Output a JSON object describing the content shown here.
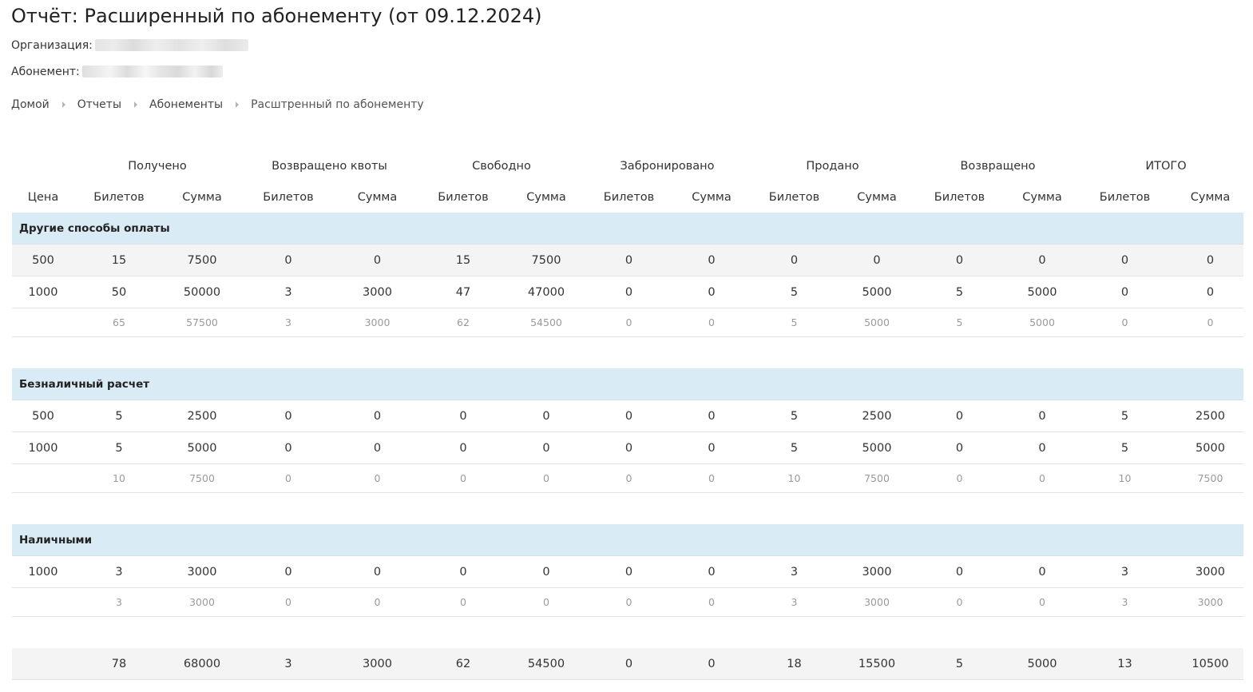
{
  "page": {
    "title": "Отчёт: Расширенный по абонементу (от 09.12.2024)",
    "organization_label": "Организация:",
    "subscription_label": "Абонемент:"
  },
  "breadcrumb": [
    "Домой",
    "Отчеты",
    "Абонементы",
    "Расштренный по абонементу"
  ],
  "table": {
    "group_headers": [
      "Получено",
      "Возвращено квоты",
      "Свободно",
      "Забронировано",
      "Продано",
      "Возвращено",
      "ИТОГО"
    ],
    "column_headers": [
      "Цена",
      "Билетов",
      "Сумма",
      "Билетов",
      "Сумма",
      "Билетов",
      "Сумма",
      "Билетов",
      "Сумма",
      "Билетов",
      "Сумма",
      "Билетов",
      "Сумма",
      "Билетов",
      "Сумма"
    ],
    "sections": [
      {
        "title": "Другие способы оплаты",
        "rows": [
          [
            "500",
            "15",
            "7500",
            "0",
            "0",
            "15",
            "7500",
            "0",
            "0",
            "0",
            "0",
            "0",
            "0",
            "0",
            "0"
          ],
          [
            "1000",
            "50",
            "50000",
            "3",
            "3000",
            "47",
            "47000",
            "0",
            "0",
            "5",
            "5000",
            "5",
            "5000",
            "0",
            "0"
          ]
        ],
        "subtotal": [
          "",
          "65",
          "57500",
          "3",
          "3000",
          "62",
          "54500",
          "0",
          "0",
          "5",
          "5000",
          "5",
          "5000",
          "0",
          "0"
        ]
      },
      {
        "title": "Безналичный расчет",
        "rows": [
          [
            "500",
            "5",
            "2500",
            "0",
            "0",
            "0",
            "0",
            "0",
            "0",
            "5",
            "2500",
            "0",
            "0",
            "5",
            "2500"
          ],
          [
            "1000",
            "5",
            "5000",
            "0",
            "0",
            "0",
            "0",
            "0",
            "0",
            "5",
            "5000",
            "0",
            "0",
            "5",
            "5000"
          ]
        ],
        "subtotal": [
          "",
          "10",
          "7500",
          "0",
          "0",
          "0",
          "0",
          "0",
          "0",
          "10",
          "7500",
          "0",
          "0",
          "10",
          "7500"
        ]
      },
      {
        "title": "Наличными",
        "rows": [
          [
            "1000",
            "3",
            "3000",
            "0",
            "0",
            "0",
            "0",
            "0",
            "0",
            "3",
            "3000",
            "0",
            "0",
            "3",
            "3000"
          ]
        ],
        "subtotal": [
          "",
          "3",
          "3000",
          "0",
          "0",
          "0",
          "0",
          "0",
          "0",
          "3",
          "3000",
          "0",
          "0",
          "3",
          "3000"
        ]
      }
    ],
    "total": [
      "",
      "78",
      "68000",
      "3",
      "3000",
      "62",
      "54500",
      "0",
      "0",
      "18",
      "15500",
      "5",
      "5000",
      "13",
      "10500"
    ]
  }
}
